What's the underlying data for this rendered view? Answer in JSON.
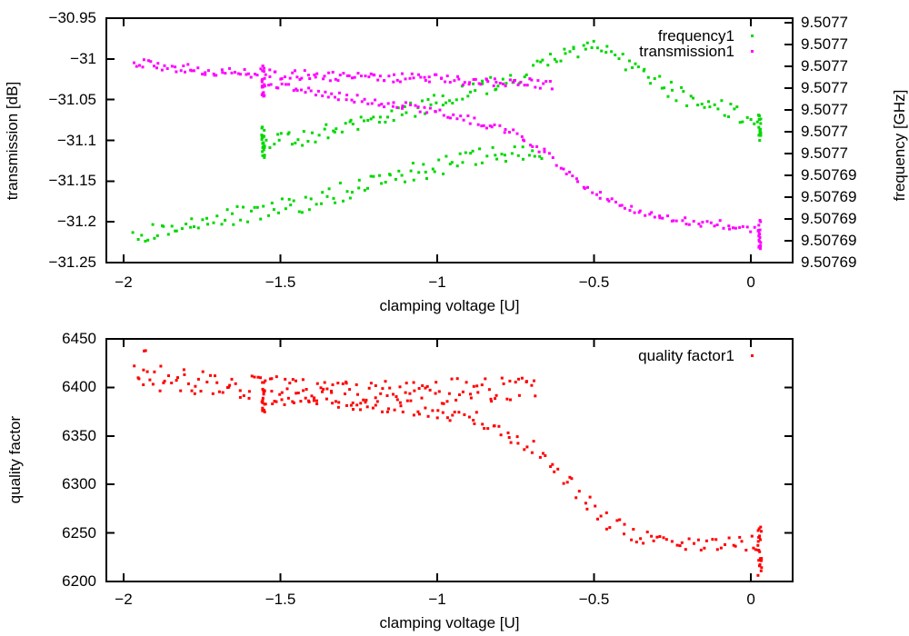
{
  "figure": {
    "background": "#ffffff",
    "text_color": "#000000"
  },
  "chart_data": [
    {
      "type": "scatter",
      "title": "",
      "xlabel": "clamping voltage [U]",
      "xlim": [
        -2.055,
        0.133
      ],
      "x_tick_values": [
        -2,
        -1.5,
        -1,
        -0.5,
        0
      ],
      "x_tick_labels": [
        "−2",
        "−1.5",
        "−1",
        "−0.5",
        "0"
      ],
      "grid": false,
      "y_left": {
        "label": "transmission [dB]",
        "lim": [
          -31.25,
          -30.95
        ],
        "tick_values": [
          -30.95,
          -31,
          -31.05,
          -31.1,
          -31.15,
          -31.2,
          -31.25
        ],
        "tick_labels": [
          "−30.95",
          "−31",
          "−31.05",
          "−31.1",
          "−31.15",
          "−31.2",
          "−31.25"
        ]
      },
      "y_right": {
        "label": "frequency [GHz]",
        "lim": [
          9.50769,
          9.5077012
        ],
        "tick_values": [
          9.507701,
          9.5077,
          9.507699,
          9.507698,
          9.507697,
          9.507696,
          9.507695,
          9.507694,
          9.507693,
          9.507692,
          9.507691,
          9.50769
        ],
        "tick_labels": [
          "9.5077",
          "9.5077",
          "9.5077",
          "9.5077",
          "9.5077",
          "9.5077",
          "9.5077",
          "9.50769",
          "9.50769",
          "9.50769",
          "9.50769",
          "9.50769"
        ]
      },
      "legend": {
        "position": "top-right-inside",
        "entries": [
          {
            "label": "frequency1",
            "color": "#00d800"
          },
          {
            "label": "transmission1",
            "color": "#ff00ff"
          }
        ]
      },
      "series": [
        {
          "name": "frequency1",
          "axis": "right",
          "color": "#00d800",
          "marker": "dot",
          "segments": [
            {
              "type": "band",
              "n": 120,
              "x_jitter": 0.004,
              "y_jitter": 4.5e-07,
              "anchors": [
                [
                  -1.97,
                  9.5076911
                ],
                [
                  -1.8,
                  9.5076918
                ],
                [
                  -1.56,
                  9.5076924
                ],
                [
                  -1.4,
                  9.5076928
                ],
                [
                  -1.2,
                  9.5076937
                ],
                [
                  -1.0,
                  9.5076944
                ],
                [
                  -0.85,
                  9.507695
                ],
                [
                  -0.66,
                  9.5076952
                ]
              ]
            },
            {
              "type": "column",
              "x": -1.555,
              "x_jitter": 0.005,
              "n": 22,
              "y_range": [
                9.5076948,
                9.5076963
              ]
            },
            {
              "type": "band",
              "n": 150,
              "x_jitter": 0.004,
              "y_jitter": 4e-07,
              "anchors": [
                [
                  -1.55,
                  9.5076954
                ],
                [
                  -1.35,
                  9.507696
                ],
                [
                  -1.15,
                  9.5076966
                ],
                [
                  -1.0,
                  9.5076974
                ],
                [
                  -0.85,
                  9.507698
                ],
                [
                  -0.7,
                  9.5076988
                ],
                [
                  -0.6,
                  9.5076995
                ],
                [
                  -0.52,
                  9.5077
                ],
                [
                  -0.4,
                  9.5076991
                ],
                [
                  -0.3,
                  9.5076982
                ],
                [
                  -0.2,
                  9.5076975
                ],
                [
                  -0.1,
                  9.5076971
                ],
                [
                  0.0,
                  9.5076966
                ],
                [
                  0.025,
                  9.5076963
                ]
              ]
            },
            {
              "type": "column",
              "x": 0.028,
              "x_jitter": 0.004,
              "n": 18,
              "y_range": [
                9.5076954,
                9.5076968
              ]
            }
          ]
        },
        {
          "name": "transmission1",
          "axis": "left",
          "color": "#ff00ff",
          "marker": "dot",
          "segments": [
            {
              "type": "band",
              "n": 150,
              "x_jitter": 0.004,
              "y_jitter": 0.006,
              "anchors": [
                [
                  -1.97,
                  -31.004
                ],
                [
                  -1.8,
                  -31.012
                ],
                [
                  -1.56,
                  -31.018
                ],
                [
                  -1.3,
                  -31.022
                ],
                [
                  -1.1,
                  -31.024
                ],
                [
                  -0.9,
                  -31.026
                ],
                [
                  -0.63,
                  -31.031
                ]
              ]
            },
            {
              "type": "column",
              "x": -1.555,
              "x_jitter": 0.004,
              "n": 20,
              "y_range": [
                -31.048,
                -31.008
              ]
            },
            {
              "type": "band",
              "n": 150,
              "x_jitter": 0.004,
              "y_jitter": 0.005,
              "anchors": [
                [
                  -1.55,
                  -31.03
                ],
                [
                  -1.4,
                  -31.04
                ],
                [
                  -1.2,
                  -31.052
                ],
                [
                  -1.0,
                  -31.064
                ],
                [
                  -0.85,
                  -31.079
                ],
                [
                  -0.74,
                  -31.094
                ],
                [
                  -0.66,
                  -31.115
                ],
                [
                  -0.58,
                  -31.141
                ],
                [
                  -0.52,
                  -31.158
                ],
                [
                  -0.46,
                  -31.172
                ],
                [
                  -0.4,
                  -31.184
                ],
                [
                  -0.3,
                  -31.193
                ],
                [
                  -0.2,
                  -31.199
                ],
                [
                  -0.1,
                  -31.203
                ],
                [
                  0.0,
                  -31.209
                ],
                [
                  0.025,
                  -31.211
                ]
              ]
            },
            {
              "type": "column",
              "x": 0.028,
              "x_jitter": 0.004,
              "n": 18,
              "y_range": [
                -31.233,
                -31.198
              ]
            }
          ]
        }
      ]
    },
    {
      "type": "scatter",
      "title": "",
      "xlabel": "clamping voltage [U]",
      "xlim": [
        -2.055,
        0.133
      ],
      "x_tick_values": [
        -2,
        -1.5,
        -1,
        -0.5,
        0
      ],
      "x_tick_labels": [
        "−2",
        "−1.5",
        "−1",
        "−0.5",
        "0"
      ],
      "grid": false,
      "y_left": {
        "label": "quality factor",
        "lim": [
          6200,
          6450
        ],
        "tick_values": [
          6450,
          6400,
          6350,
          6300,
          6250,
          6200
        ],
        "tick_labels": [
          "6450",
          "6400",
          "6350",
          "6300",
          "6250",
          "6200"
        ]
      },
      "legend": {
        "position": "top-right-inside",
        "entries": [
          {
            "label": "quality factor1",
            "color": "#ff0000"
          }
        ]
      },
      "series": [
        {
          "name": "quality factor1",
          "axis": "left",
          "color": "#ff0000",
          "marker": "dot",
          "segments": [
            {
              "type": "band",
              "n": 150,
              "x_jitter": 0.004,
              "y_jitter": 13,
              "anchors": [
                [
                  -1.97,
                  6413
                ],
                [
                  -1.8,
                  6406
                ],
                [
                  -1.6,
                  6400
                ],
                [
                  -1.4,
                  6396
                ],
                [
                  -1.2,
                  6394
                ],
                [
                  -1.0,
                  6396
                ],
                [
                  -0.85,
                  6398
                ],
                [
                  -0.68,
                  6400
                ]
              ]
            },
            {
              "type": "column",
              "x": -1.93,
              "x_jitter": 0.01,
              "n": 2,
              "y_range": [
                6432,
                6442
              ]
            },
            {
              "type": "column",
              "x": -1.555,
              "x_jitter": 0.005,
              "n": 18,
              "y_range": [
                6374,
                6409
              ]
            },
            {
              "type": "band",
              "n": 140,
              "x_jitter": 0.004,
              "y_jitter": 9,
              "anchors": [
                [
                  -1.55,
                  6391
                ],
                [
                  -1.4,
                  6389
                ],
                [
                  -1.25,
                  6386
                ],
                [
                  -1.1,
                  6381
                ],
                [
                  -0.98,
                  6375
                ],
                [
                  -0.88,
                  6366
                ],
                [
                  -0.78,
                  6354
                ],
                [
                  -0.7,
                  6338
                ],
                [
                  -0.62,
                  6315
                ],
                [
                  -0.55,
                  6291
                ],
                [
                  -0.49,
                  6270
                ],
                [
                  -0.44,
                  6258
                ],
                [
                  -0.36,
                  6249
                ],
                [
                  -0.26,
                  6243
                ],
                [
                  -0.16,
                  6240
                ],
                [
                  -0.06,
                  6237
                ],
                [
                  0.025,
                  6241
                ]
              ]
            },
            {
              "type": "column",
              "x": 0.028,
              "x_jitter": 0.006,
              "n": 22,
              "y_range": [
                6204,
                6258
              ]
            }
          ]
        }
      ]
    }
  ]
}
